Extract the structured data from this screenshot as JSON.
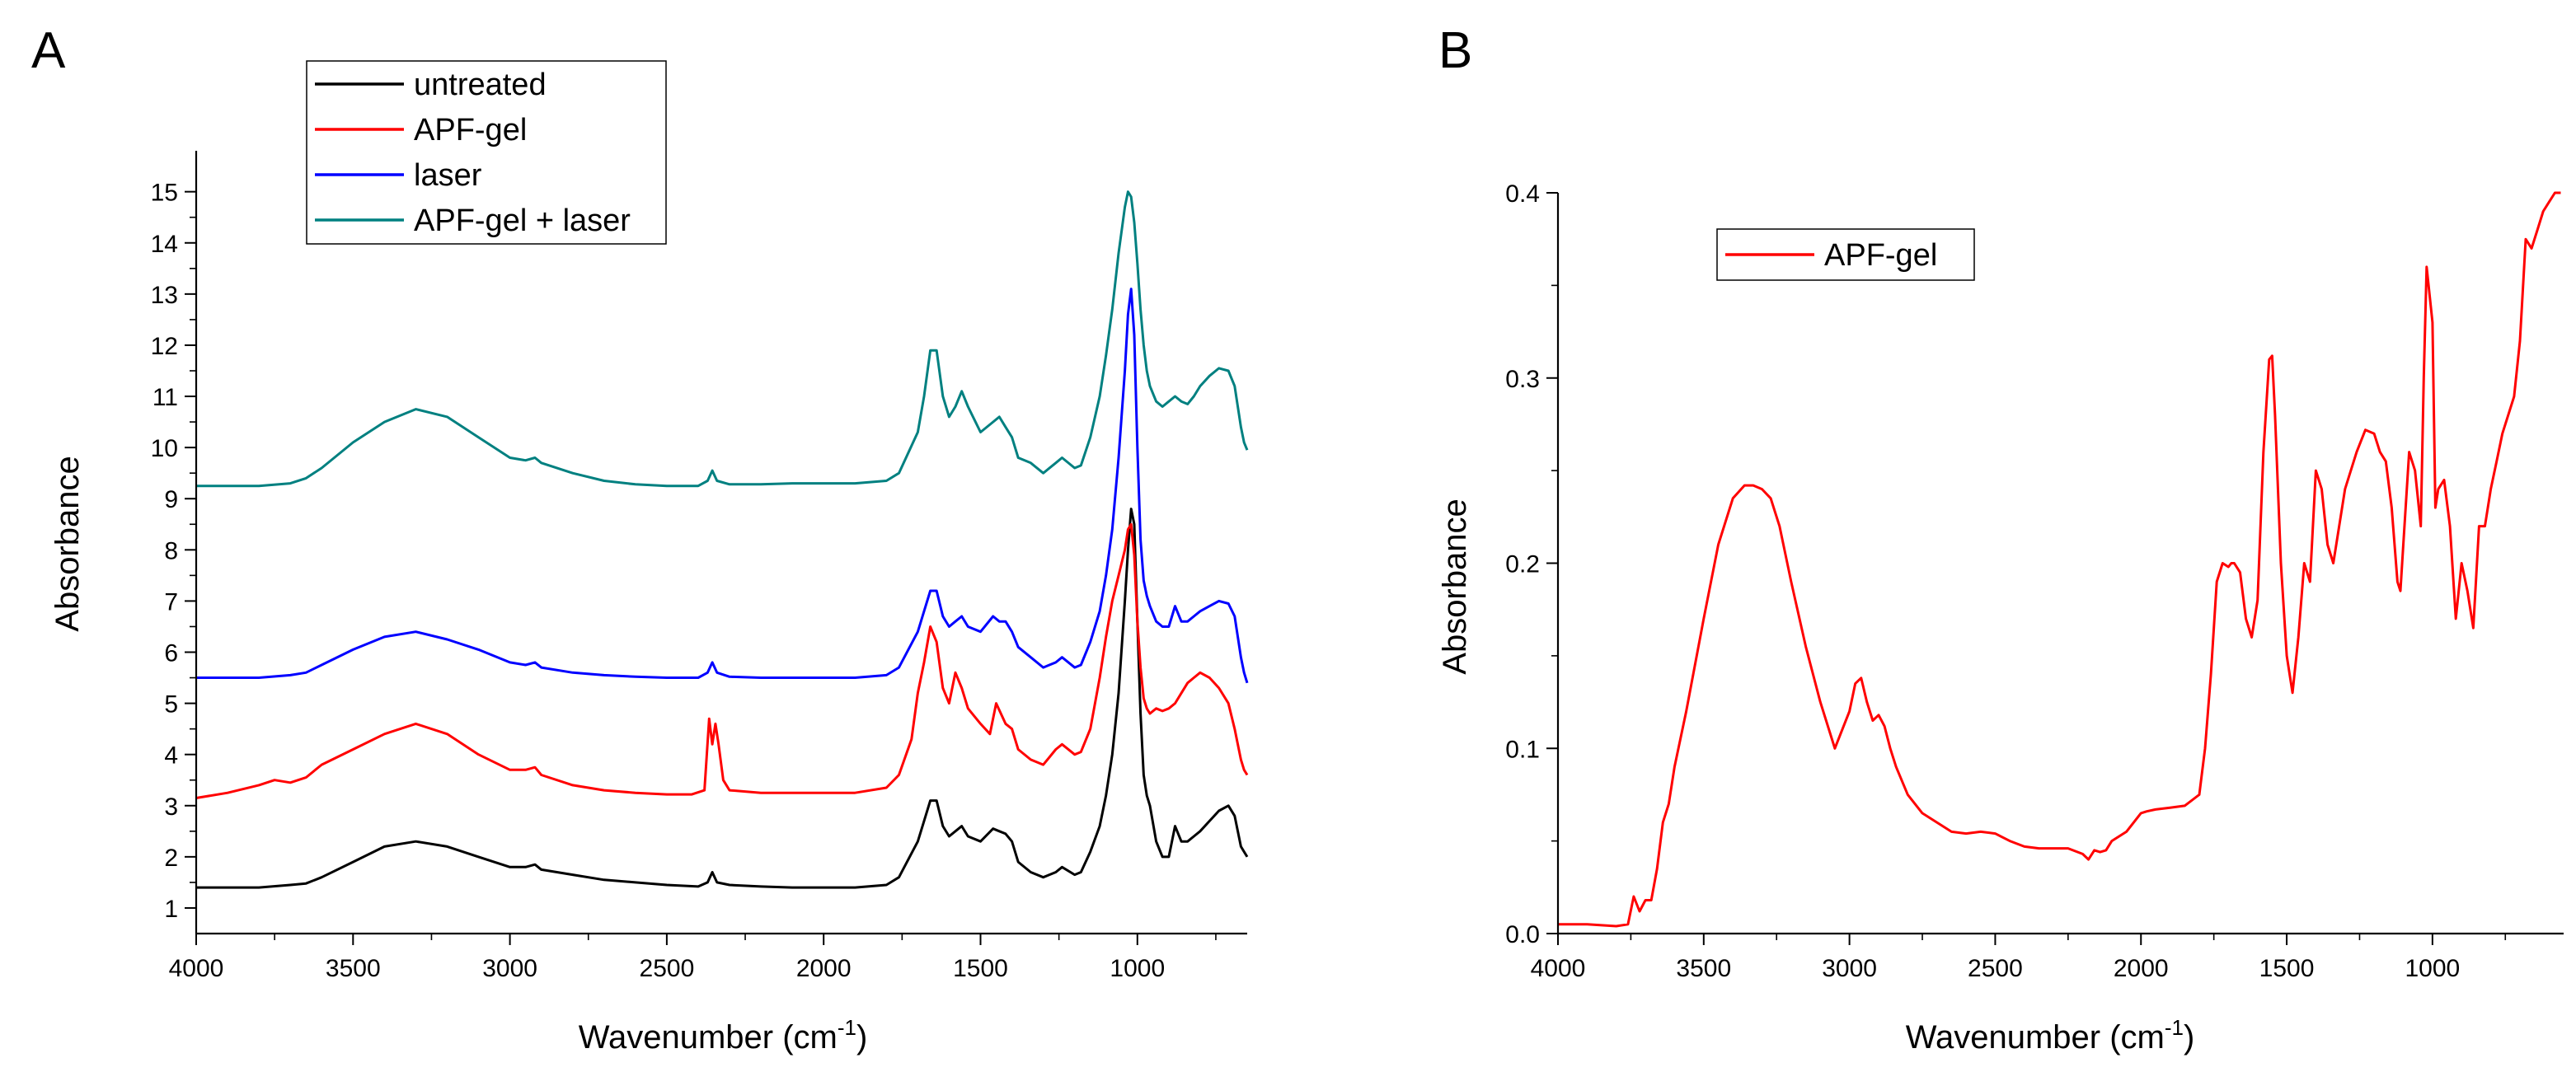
{
  "chart_data": [
    {
      "type": "line",
      "panel_label": "A",
      "xlabel": "Wavenumber (cm",
      "xlabel_sup": "-1",
      "xlabel_suffix": ")",
      "ylabel": "Absorbance",
      "xlim": [
        4000,
        650
      ],
      "ylim": [
        0.5,
        15.8
      ],
      "xticks": [
        4000,
        3500,
        3000,
        2500,
        2000,
        1500,
        1000
      ],
      "yticks": [
        1,
        2,
        3,
        4,
        5,
        6,
        7,
        8,
        9,
        10,
        11,
        12,
        13,
        14,
        15
      ],
      "legend_position": "top-left",
      "series": [
        {
          "name": "untreated",
          "color": "#000000",
          "x": [
            4000,
            3800,
            3700,
            3650,
            3600,
            3500,
            3400,
            3300,
            3200,
            3100,
            3000,
            2950,
            2920,
            2900,
            2800,
            2700,
            2600,
            2500,
            2400,
            2370,
            2355,
            2340,
            2300,
            2200,
            2100,
            2000,
            1900,
            1800,
            1760,
            1700,
            1680,
            1660,
            1640,
            1620,
            1600,
            1580,
            1560,
            1540,
            1500,
            1460,
            1440,
            1420,
            1400,
            1380,
            1340,
            1300,
            1260,
            1240,
            1200,
            1180,
            1150,
            1120,
            1100,
            1080,
            1060,
            1040,
            1030,
            1020,
            1010,
            1000,
            990,
            980,
            970,
            960,
            940,
            920,
            900,
            880,
            860,
            840,
            820,
            800,
            770,
            740,
            710,
            690,
            680,
            670,
            660,
            650
          ],
          "y": [
            1.4,
            1.4,
            1.45,
            1.48,
            1.6,
            1.9,
            2.2,
            2.3,
            2.2,
            2.0,
            1.8,
            1.8,
            1.85,
            1.75,
            1.65,
            1.55,
            1.5,
            1.45,
            1.42,
            1.5,
            1.7,
            1.5,
            1.45,
            1.42,
            1.4,
            1.4,
            1.4,
            1.45,
            1.6,
            2.3,
            2.7,
            3.1,
            3.1,
            2.6,
            2.4,
            2.5,
            2.6,
            2.4,
            2.3,
            2.55,
            2.5,
            2.45,
            2.3,
            1.9,
            1.7,
            1.6,
            1.7,
            1.8,
            1.65,
            1.7,
            2.1,
            2.6,
            3.2,
            4.0,
            5.2,
            7.0,
            8.0,
            8.8,
            8.5,
            6.6,
            4.8,
            3.6,
            3.2,
            3.0,
            2.3,
            2.0,
            2.0,
            2.6,
            2.3,
            2.3,
            2.4,
            2.5,
            2.7,
            2.9,
            3.0,
            2.8,
            2.5,
            2.2,
            2.1,
            2.0
          ]
        },
        {
          "name": "APF-gel",
          "color": "#ff0000",
          "x": [
            4000,
            3900,
            3800,
            3750,
            3700,
            3650,
            3600,
            3500,
            3400,
            3300,
            3200,
            3100,
            3000,
            2950,
            2920,
            2900,
            2800,
            2700,
            2600,
            2500,
            2420,
            2380,
            2365,
            2355,
            2345,
            2335,
            2320,
            2300,
            2200,
            2100,
            2000,
            1900,
            1800,
            1760,
            1720,
            1700,
            1680,
            1660,
            1640,
            1620,
            1600,
            1580,
            1560,
            1540,
            1500,
            1470,
            1450,
            1420,
            1400,
            1380,
            1340,
            1300,
            1260,
            1240,
            1200,
            1180,
            1150,
            1120,
            1100,
            1080,
            1060,
            1040,
            1030,
            1020,
            1010,
            1000,
            990,
            980,
            970,
            960,
            940,
            920,
            900,
            880,
            860,
            840,
            820,
            800,
            770,
            740,
            710,
            690,
            680,
            670,
            660,
            650
          ],
          "y": [
            3.15,
            3.25,
            3.4,
            3.5,
            3.45,
            3.55,
            3.8,
            4.1,
            4.4,
            4.6,
            4.4,
            4.0,
            3.7,
            3.7,
            3.75,
            3.6,
            3.4,
            3.3,
            3.25,
            3.22,
            3.22,
            3.3,
            4.7,
            4.2,
            4.6,
            4.2,
            3.5,
            3.3,
            3.25,
            3.25,
            3.25,
            3.25,
            3.35,
            3.6,
            4.3,
            5.2,
            5.8,
            6.5,
            6.2,
            5.3,
            5.0,
            5.6,
            5.3,
            4.9,
            4.6,
            4.4,
            5.0,
            4.6,
            4.5,
            4.1,
            3.9,
            3.8,
            4.1,
            4.2,
            4.0,
            4.05,
            4.5,
            5.5,
            6.3,
            7.0,
            7.5,
            8.0,
            8.4,
            8.5,
            7.9,
            6.6,
            5.7,
            5.1,
            4.9,
            4.8,
            4.9,
            4.85,
            4.9,
            5.0,
            5.2,
            5.4,
            5.5,
            5.6,
            5.5,
            5.3,
            5.0,
            4.5,
            4.2,
            3.9,
            3.7,
            3.6
          ]
        },
        {
          "name": "laser",
          "color": "#0000ff",
          "x": [
            4000,
            3800,
            3700,
            3650,
            3600,
            3500,
            3400,
            3300,
            3200,
            3100,
            3000,
            2950,
            2920,
            2900,
            2800,
            2700,
            2600,
            2500,
            2400,
            2370,
            2355,
            2340,
            2300,
            2200,
            2100,
            2000,
            1900,
            1800,
            1760,
            1700,
            1680,
            1660,
            1640,
            1620,
            1600,
            1580,
            1560,
            1540,
            1500,
            1460,
            1440,
            1420,
            1400,
            1380,
            1340,
            1300,
            1260,
            1240,
            1200,
            1180,
            1150,
            1120,
            1100,
            1080,
            1060,
            1040,
            1030,
            1020,
            1010,
            1000,
            990,
            980,
            970,
            960,
            940,
            920,
            900,
            880,
            860,
            840,
            820,
            800,
            770,
            740,
            710,
            690,
            680,
            670,
            660,
            650
          ],
          "y": [
            5.5,
            5.5,
            5.55,
            5.6,
            5.75,
            6.05,
            6.3,
            6.4,
            6.25,
            6.05,
            5.8,
            5.75,
            5.8,
            5.7,
            5.6,
            5.55,
            5.52,
            5.5,
            5.5,
            5.6,
            5.8,
            5.6,
            5.52,
            5.5,
            5.5,
            5.5,
            5.5,
            5.55,
            5.7,
            6.4,
            6.8,
            7.2,
            7.2,
            6.7,
            6.5,
            6.6,
            6.7,
            6.5,
            6.4,
            6.7,
            6.6,
            6.6,
            6.4,
            6.1,
            5.9,
            5.7,
            5.8,
            5.9,
            5.7,
            5.75,
            6.2,
            6.8,
            7.5,
            8.4,
            9.8,
            11.5,
            12.6,
            13.1,
            12.2,
            10.0,
            8.2,
            7.4,
            7.1,
            6.9,
            6.6,
            6.5,
            6.5,
            6.9,
            6.6,
            6.6,
            6.7,
            6.8,
            6.9,
            7.0,
            6.95,
            6.7,
            6.3,
            5.9,
            5.6,
            5.4
          ]
        },
        {
          "name": "APF-gel + laser",
          "color": "#008080",
          "x": [
            4000,
            3800,
            3700,
            3650,
            3600,
            3500,
            3400,
            3300,
            3200,
            3100,
            3000,
            2950,
            2920,
            2900,
            2800,
            2700,
            2600,
            2500,
            2400,
            2370,
            2355,
            2340,
            2300,
            2200,
            2100,
            2000,
            1900,
            1800,
            1760,
            1700,
            1680,
            1660,
            1640,
            1620,
            1600,
            1580,
            1560,
            1540,
            1500,
            1460,
            1440,
            1420,
            1400,
            1380,
            1340,
            1300,
            1260,
            1240,
            1200,
            1180,
            1150,
            1120,
            1100,
            1080,
            1060,
            1040,
            1030,
            1020,
            1010,
            1000,
            990,
            980,
            970,
            960,
            940,
            920,
            900,
            880,
            860,
            840,
            820,
            800,
            770,
            740,
            710,
            690,
            680,
            670,
            660,
            650
          ],
          "y": [
            9.25,
            9.25,
            9.3,
            9.4,
            9.6,
            10.1,
            10.5,
            10.75,
            10.6,
            10.2,
            9.8,
            9.75,
            9.8,
            9.7,
            9.5,
            9.35,
            9.28,
            9.25,
            9.25,
            9.35,
            9.55,
            9.35,
            9.28,
            9.28,
            9.3,
            9.3,
            9.3,
            9.35,
            9.5,
            10.3,
            11.0,
            11.9,
            11.9,
            11.0,
            10.6,
            10.8,
            11.1,
            10.8,
            10.3,
            10.5,
            10.6,
            10.4,
            10.2,
            9.8,
            9.7,
            9.5,
            9.7,
            9.8,
            9.6,
            9.65,
            10.2,
            11.0,
            11.8,
            12.7,
            13.8,
            14.7,
            15.0,
            14.9,
            14.4,
            13.6,
            12.7,
            12.0,
            11.5,
            11.2,
            10.9,
            10.8,
            10.9,
            11.0,
            10.9,
            10.85,
            11.0,
            11.2,
            11.4,
            11.55,
            11.5,
            11.2,
            10.8,
            10.4,
            10.1,
            9.95
          ]
        }
      ]
    },
    {
      "type": "line",
      "panel_label": "B",
      "xlabel": "Wavenumber (cm",
      "xlabel_sup": "-1",
      "xlabel_suffix": ")",
      "ylabel": "Absorbance",
      "xlim": [
        4000,
        550
      ],
      "ylim": [
        0.0,
        0.4
      ],
      "xticks": [
        4000,
        3500,
        3000,
        2500,
        2000,
        1500,
        1000
      ],
      "yticks": [
        "0.0",
        "0.1",
        "0.2",
        "0.3",
        "0.4"
      ],
      "legend_position": "top-left",
      "series": [
        {
          "name": "APF-gel",
          "color": "#ff0000",
          "x": [
            4000,
            3900,
            3800,
            3760,
            3740,
            3720,
            3700,
            3680,
            3660,
            3640,
            3620,
            3600,
            3560,
            3500,
            3450,
            3400,
            3360,
            3330,
            3300,
            3270,
            3240,
            3200,
            3150,
            3100,
            3050,
            3000,
            2980,
            2960,
            2940,
            2920,
            2900,
            2880,
            2860,
            2840,
            2800,
            2750,
            2700,
            2650,
            2600,
            2550,
            2500,
            2450,
            2400,
            2350,
            2300,
            2250,
            2200,
            2180,
            2160,
            2140,
            2120,
            2100,
            2050,
            2000,
            1980,
            1950,
            1900,
            1850,
            1800,
            1780,
            1760,
            1740,
            1720,
            1700,
            1690,
            1680,
            1660,
            1640,
            1620,
            1600,
            1580,
            1560,
            1550,
            1540,
            1520,
            1500,
            1480,
            1460,
            1440,
            1420,
            1400,
            1380,
            1360,
            1340,
            1300,
            1260,
            1230,
            1200,
            1180,
            1160,
            1140,
            1120,
            1110,
            1100,
            1080,
            1060,
            1040,
            1030,
            1020,
            1000,
            990,
            980,
            960,
            940,
            920,
            900,
            880,
            860,
            840,
            820,
            800,
            780,
            760,
            740,
            720,
            700,
            680,
            660,
            640,
            620,
            600,
            580,
            560
          ],
          "y": [
            0.005,
            0.005,
            0.004,
            0.005,
            0.02,
            0.012,
            0.018,
            0.018,
            0.035,
            0.06,
            0.07,
            0.09,
            0.12,
            0.17,
            0.21,
            0.235,
            0.242,
            0.242,
            0.24,
            0.235,
            0.22,
            0.19,
            0.155,
            0.125,
            0.1,
            0.12,
            0.135,
            0.138,
            0.125,
            0.115,
            0.118,
            0.112,
            0.1,
            0.09,
            0.075,
            0.065,
            0.06,
            0.055,
            0.054,
            0.055,
            0.054,
            0.05,
            0.047,
            0.046,
            0.046,
            0.046,
            0.043,
            0.04,
            0.045,
            0.044,
            0.045,
            0.05,
            0.055,
            0.065,
            0.066,
            0.067,
            0.068,
            0.069,
            0.075,
            0.1,
            0.14,
            0.19,
            0.2,
            0.198,
            0.2,
            0.2,
            0.195,
            0.17,
            0.16,
            0.18,
            0.26,
            0.31,
            0.312,
            0.28,
            0.2,
            0.15,
            0.13,
            0.16,
            0.2,
            0.19,
            0.25,
            0.24,
            0.21,
            0.2,
            0.24,
            0.26,
            0.272,
            0.27,
            0.26,
            0.255,
            0.23,
            0.19,
            0.185,
            0.21,
            0.26,
            0.25,
            0.22,
            0.3,
            0.36,
            0.33,
            0.23,
            0.24,
            0.245,
            0.22,
            0.17,
            0.2,
            0.185,
            0.165,
            0.22,
            0.22,
            0.24,
            0.255,
            0.27,
            0.28,
            0.29,
            0.32,
            0.375,
            0.37,
            0.38,
            0.39,
            0.395,
            0.4,
            0.4
          ]
        }
      ]
    }
  ]
}
